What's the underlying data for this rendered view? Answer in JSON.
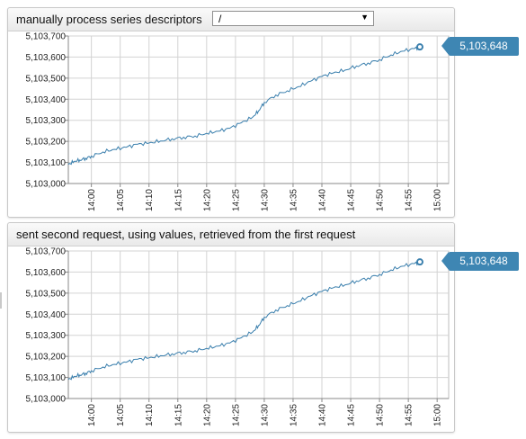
{
  "widgets": [
    {
      "title": "manually process series descriptors",
      "dropdown": {
        "selected": "/"
      },
      "last_value_label": "5,103,648"
    },
    {
      "title": "sent second request, using values, retrieved from the first request",
      "last_value_label": "5,103,648"
    }
  ],
  "colors": {
    "series": "#3a7fad",
    "badge": "#3e86b3",
    "grid": "#d3d3d3"
  },
  "chart_data": [
    {
      "type": "line",
      "title": "manually process series descriptors",
      "xlabel": "",
      "ylabel": "",
      "ylim": [
        5103000,
        5103700
      ],
      "y_ticks": [
        "5,103,000",
        "5,103,100",
        "5,103,200",
        "5,103,300",
        "5,103,400",
        "5,103,500",
        "5,103,600",
        "5,103,700"
      ],
      "x_ticks": [
        "14:00",
        "14:05",
        "14:10",
        "14:15",
        "14:20",
        "14:25",
        "14:30",
        "14:35",
        "14:40",
        "14:45",
        "14:50",
        "14:55",
        "15:00"
      ],
      "xlim": [
        "13:56",
        "15:02"
      ],
      "grid": true,
      "last_value": 5103648,
      "series": [
        {
          "x": [
            "13:56",
            "13:57",
            "13:58",
            "13:59",
            "14:00",
            "14:02",
            "14:04",
            "14:06",
            "14:08",
            "14:10",
            "14:12",
            "14:14",
            "14:16",
            "14:18",
            "14:20",
            "14:22",
            "14:24",
            "14:26",
            "14:28",
            "14:29",
            "14:30",
            "14:32",
            "14:34",
            "14:36",
            "14:38",
            "14:40",
            "14:42",
            "14:44",
            "14:46",
            "14:48",
            "14:50",
            "14:52",
            "14:54",
            "14:56",
            "14:57"
          ],
          "values": [
            5103090,
            5103105,
            5103112,
            5103120,
            5103130,
            5103150,
            5103162,
            5103172,
            5103186,
            5103192,
            5103202,
            5103212,
            5103220,
            5103226,
            5103238,
            5103248,
            5103262,
            5103288,
            5103315,
            5103345,
            5103385,
            5103420,
            5103440,
            5103460,
            5103485,
            5103508,
            5103525,
            5103538,
            5103558,
            5103572,
            5103588,
            5103610,
            5103628,
            5103640,
            5103648
          ]
        }
      ]
    },
    {
      "type": "line",
      "title": "sent second request, using values, retrieved from the first request",
      "xlabel": "",
      "ylabel": "",
      "ylim": [
        5103000,
        5103700
      ],
      "y_ticks": [
        "5,103,000",
        "5,103,100",
        "5,103,200",
        "5,103,300",
        "5,103,400",
        "5,103,500",
        "5,103,600",
        "5,103,700"
      ],
      "x_ticks": [
        "14:00",
        "14:05",
        "14:10",
        "14:15",
        "14:20",
        "14:25",
        "14:30",
        "14:35",
        "14:40",
        "14:45",
        "14:50",
        "14:55",
        "15:00"
      ],
      "xlim": [
        "13:56",
        "15:02"
      ],
      "grid": true,
      "last_value": 5103648,
      "series": [
        {
          "x": [
            "13:56",
            "13:57",
            "13:58",
            "13:59",
            "14:00",
            "14:02",
            "14:04",
            "14:06",
            "14:08",
            "14:10",
            "14:12",
            "14:14",
            "14:16",
            "14:18",
            "14:20",
            "14:22",
            "14:24",
            "14:26",
            "14:28",
            "14:29",
            "14:30",
            "14:32",
            "14:34",
            "14:36",
            "14:38",
            "14:40",
            "14:42",
            "14:44",
            "14:46",
            "14:48",
            "14:50",
            "14:52",
            "14:54",
            "14:56",
            "14:57"
          ],
          "values": [
            5103090,
            5103104,
            5103112,
            5103120,
            5103132,
            5103150,
            5103162,
            5103172,
            5103186,
            5103193,
            5103203,
            5103212,
            5103220,
            5103227,
            5103238,
            5103249,
            5103263,
            5103288,
            5103316,
            5103346,
            5103386,
            5103420,
            5103441,
            5103461,
            5103486,
            5103508,
            5103526,
            5103539,
            5103558,
            5103572,
            5103589,
            5103610,
            5103628,
            5103640,
            5103648
          ]
        }
      ]
    }
  ]
}
